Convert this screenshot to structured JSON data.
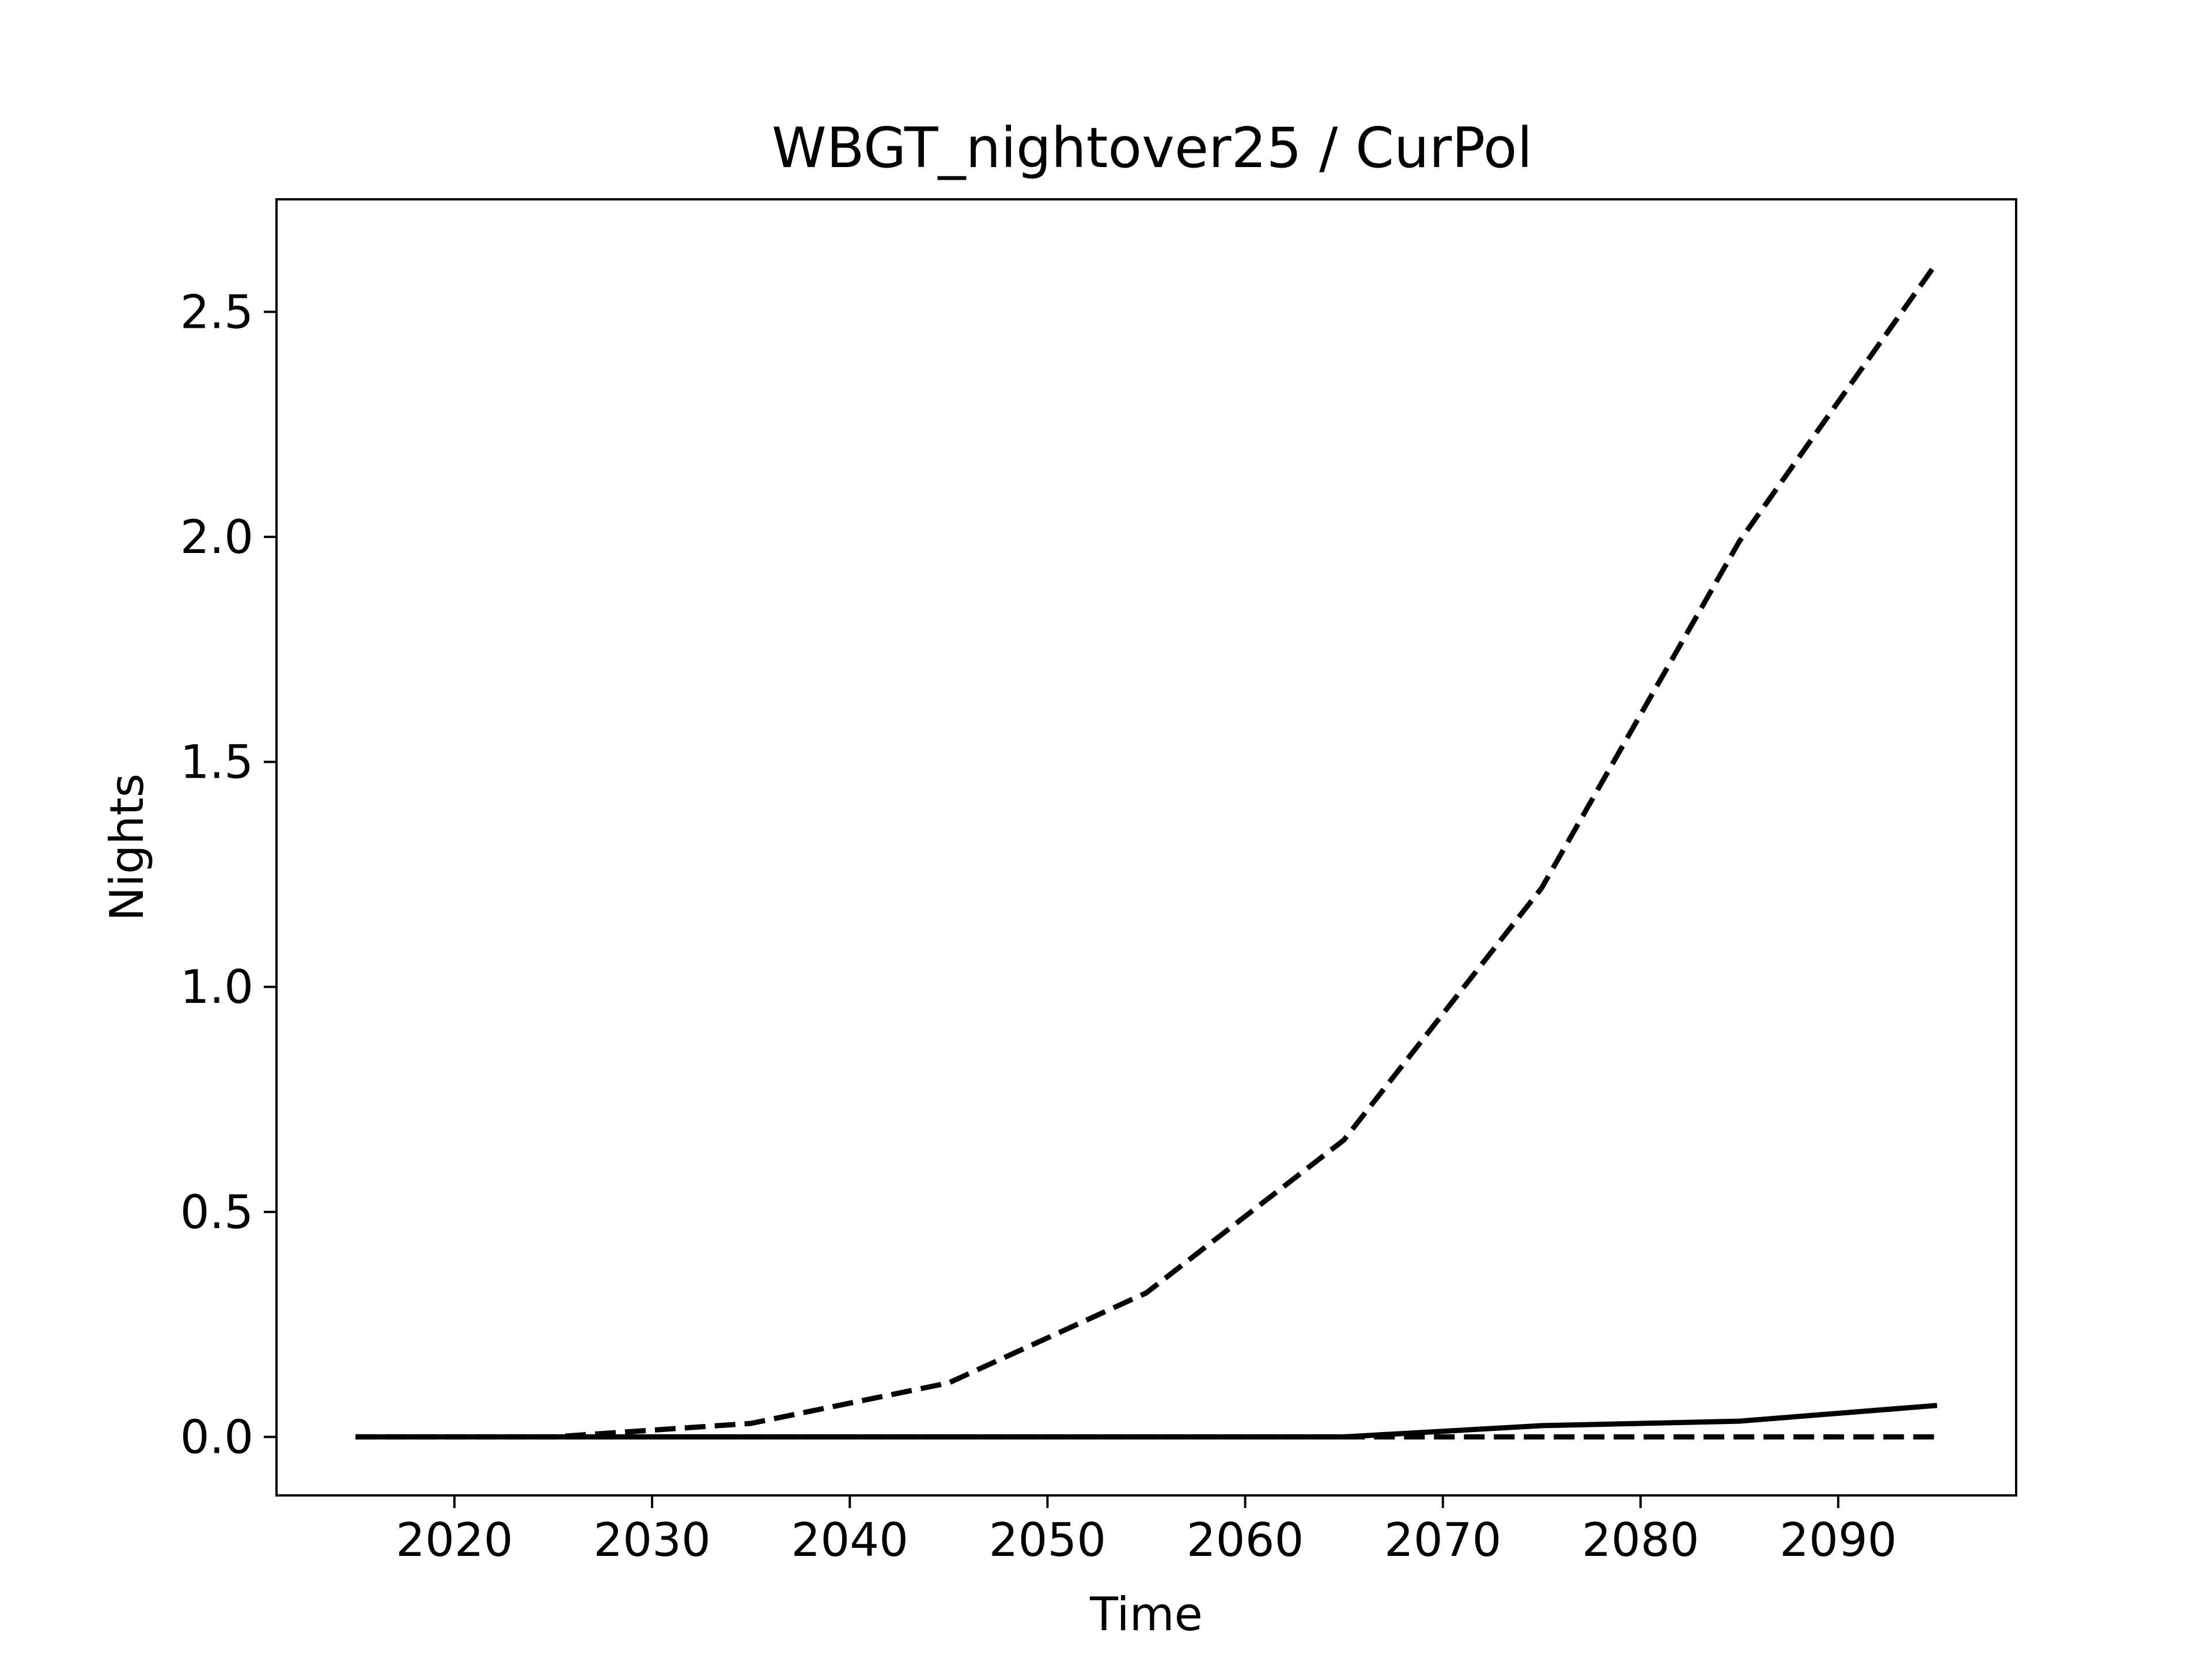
{
  "chart_data": {
    "type": "line",
    "title": "WBGT_nightover25 / CurPol",
    "xlabel": "Time",
    "ylabel": "Nights",
    "xlim": [
      2011,
      2099
    ],
    "ylim": [
      -0.13,
      2.75
    ],
    "xticks": [
      2020,
      2030,
      2040,
      2050,
      2060,
      2070,
      2080,
      2090
    ],
    "yticks": [
      0.0,
      0.5,
      1.0,
      1.5,
      2.0,
      2.5
    ],
    "ytick_labels": [
      "0.0",
      "0.5",
      "1.0",
      "1.5",
      "2.0",
      "2.5"
    ],
    "grid": false,
    "legend": "none",
    "color": "#000000",
    "series": [
      {
        "style": "dashed",
        "x": [
          2015,
          2025,
          2035,
          2045,
          2055,
          2065,
          2075,
          2085,
          2095
        ],
        "values": [
          0.0,
          0.0,
          0.03,
          0.12,
          0.32,
          0.66,
          1.22,
          1.99,
          2.61
        ]
      },
      {
        "style": "solid",
        "x": [
          2015,
          2025,
          2035,
          2045,
          2055,
          2065,
          2075,
          2085,
          2095
        ],
        "values": [
          0.0,
          0.0,
          0.0,
          0.0,
          0.0,
          0.0,
          0.025,
          0.035,
          0.07
        ]
      },
      {
        "style": "dashed",
        "x": [
          2015,
          2025,
          2035,
          2045,
          2055,
          2065,
          2075,
          2085,
          2095
        ],
        "values": [
          0.0,
          0.0,
          0.0,
          0.0,
          0.0,
          0.0,
          0.0,
          0.0,
          0.0
        ]
      }
    ]
  }
}
